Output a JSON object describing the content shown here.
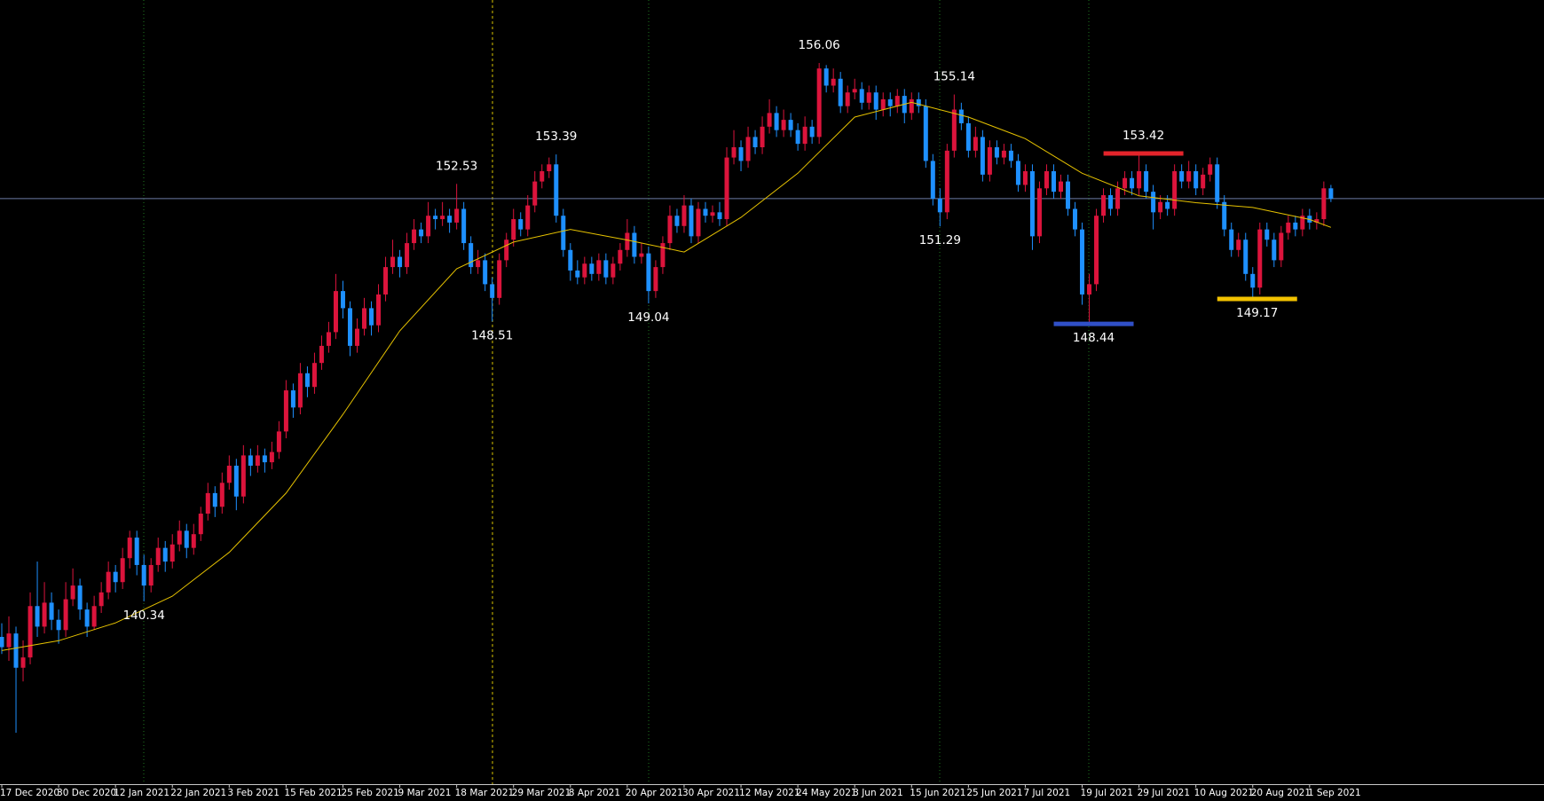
{
  "chart_data": {
    "type": "candlestick",
    "ylim": [
      135,
      157.9
    ],
    "up_color": "#dc143c",
    "down_color": "#1e90ff",
    "price_line": 152.1,
    "price_line_color": "#6b7ba4",
    "categories": [
      "17 Dec 2020",
      null,
      null,
      null,
      null,
      null,
      null,
      null,
      "30 Dec 2020",
      null,
      null,
      null,
      null,
      null,
      null,
      null,
      "12 Jan 2021",
      null,
      null,
      null,
      null,
      null,
      null,
      null,
      "22 Jan 2021",
      null,
      null,
      null,
      null,
      null,
      null,
      null,
      "3 Feb 2021",
      null,
      null,
      null,
      null,
      null,
      null,
      null,
      "15 Feb 2021",
      null,
      null,
      null,
      null,
      null,
      null,
      null,
      "25 Feb 2021",
      null,
      null,
      null,
      null,
      null,
      null,
      null,
      "9 Mar 2021",
      null,
      null,
      null,
      null,
      null,
      null,
      null,
      "18 Mar 2021",
      null,
      null,
      null,
      null,
      null,
      null,
      null,
      "29 Mar 2021",
      null,
      null,
      null,
      null,
      null,
      null,
      null,
      "8 Apr 2021",
      null,
      null,
      null,
      null,
      null,
      null,
      null,
      "20 Apr 2021",
      null,
      null,
      null,
      null,
      null,
      null,
      null,
      "30 Apr 2021",
      null,
      null,
      null,
      null,
      null,
      null,
      null,
      "12 May 2021",
      null,
      null,
      null,
      null,
      null,
      null,
      null,
      "24 May 2021",
      null,
      null,
      null,
      null,
      null,
      null,
      null,
      "3 Jun 2021",
      null,
      null,
      null,
      null,
      null,
      null,
      null,
      "15 Jun 2021",
      null,
      null,
      null,
      null,
      null,
      null,
      null,
      "25 Jun 2021",
      null,
      null,
      null,
      null,
      null,
      null,
      null,
      "7 Jul 2021",
      null,
      null,
      null,
      null,
      null,
      null,
      null,
      "19 Jul 2021",
      null,
      null,
      null,
      null,
      null,
      null,
      null,
      "29 Jul 2021",
      null,
      null,
      null,
      null,
      null,
      null,
      null,
      "10 Aug 2021",
      null,
      null,
      null,
      null,
      null,
      null,
      null,
      "20 Aug 2021",
      null,
      null,
      null,
      null,
      null,
      null,
      null,
      "1 Sep 2021",
      null,
      null,
      null
    ],
    "ohlc": [
      [
        139.3,
        139.7,
        138.8,
        139.0
      ],
      [
        139.0,
        139.9,
        138.6,
        139.4
      ],
      [
        139.4,
        139.6,
        136.5,
        138.4
      ],
      [
        138.4,
        139.2,
        138.0,
        138.7
      ],
      [
        138.7,
        140.6,
        138.5,
        140.2
      ],
      [
        140.2,
        141.5,
        139.3,
        139.6
      ],
      [
        139.6,
        140.9,
        139.4,
        140.3
      ],
      [
        140.3,
        140.6,
        139.5,
        139.8
      ],
      [
        139.8,
        140.1,
        139.1,
        139.5
      ],
      [
        139.5,
        140.9,
        139.3,
        140.4
      ],
      [
        140.4,
        141.3,
        140.2,
        140.8
      ],
      [
        140.8,
        141.0,
        139.8,
        140.1
      ],
      [
        140.1,
        140.3,
        139.3,
        139.6
      ],
      [
        139.6,
        140.5,
        139.5,
        140.2
      ],
      [
        140.2,
        140.9,
        140.0,
        140.6
      ],
      [
        140.6,
        141.5,
        140.4,
        141.2
      ],
      [
        141.2,
        141.4,
        140.6,
        140.9
      ],
      [
        140.9,
        141.9,
        140.7,
        141.6
      ],
      [
        141.6,
        142.4,
        141.3,
        142.2
      ],
      [
        142.2,
        142.4,
        141.1,
        141.4
      ],
      [
        141.4,
        141.7,
        140.34,
        140.8
      ],
      [
        140.8,
        141.6,
        140.6,
        141.4
      ],
      [
        141.4,
        142.2,
        141.2,
        141.9
      ],
      [
        141.9,
        142.1,
        141.2,
        141.5
      ],
      [
        141.5,
        142.3,
        141.3,
        142.0
      ],
      [
        142.0,
        142.7,
        141.8,
        142.4
      ],
      [
        142.4,
        142.6,
        141.6,
        141.9
      ],
      [
        141.9,
        142.6,
        141.7,
        142.3
      ],
      [
        142.3,
        143.1,
        142.1,
        142.9
      ],
      [
        142.9,
        143.8,
        142.7,
        143.5
      ],
      [
        143.5,
        143.7,
        142.8,
        143.1
      ],
      [
        143.1,
        144.1,
        142.9,
        143.8
      ],
      [
        143.8,
        144.6,
        143.6,
        144.3
      ],
      [
        144.3,
        144.5,
        143.0,
        143.4
      ],
      [
        143.4,
        144.9,
        143.2,
        144.6
      ],
      [
        144.6,
        144.8,
        144.0,
        144.3
      ],
      [
        144.3,
        144.9,
        144.1,
        144.6
      ],
      [
        144.6,
        144.8,
        144.1,
        144.4
      ],
      [
        144.4,
        145.0,
        144.2,
        144.7
      ],
      [
        144.7,
        145.6,
        144.5,
        145.3
      ],
      [
        145.3,
        146.8,
        145.1,
        146.5
      ],
      [
        146.5,
        146.7,
        145.7,
        146.0
      ],
      [
        146.0,
        147.3,
        145.8,
        147.0
      ],
      [
        147.0,
        147.2,
        146.3,
        146.6
      ],
      [
        146.6,
        147.6,
        146.4,
        147.3
      ],
      [
        147.3,
        148.1,
        147.1,
        147.8
      ],
      [
        147.8,
        148.5,
        147.6,
        148.2
      ],
      [
        148.2,
        149.9,
        148.0,
        149.4
      ],
      [
        149.4,
        149.7,
        148.6,
        148.9
      ],
      [
        148.9,
        149.1,
        147.5,
        147.8
      ],
      [
        147.8,
        148.6,
        147.6,
        148.3
      ],
      [
        148.3,
        149.2,
        148.1,
        148.9
      ],
      [
        148.9,
        149.1,
        148.1,
        148.4
      ],
      [
        148.4,
        149.6,
        148.2,
        149.3
      ],
      [
        149.3,
        150.4,
        149.1,
        150.1
      ],
      [
        150.1,
        150.9,
        149.9,
        150.4
      ],
      [
        150.4,
        150.6,
        149.8,
        150.1
      ],
      [
        150.1,
        151.1,
        149.9,
        150.8
      ],
      [
        150.8,
        151.5,
        150.6,
        151.2
      ],
      [
        151.2,
        151.4,
        150.8,
        151.0
      ],
      [
        151.0,
        152.0,
        150.8,
        151.6
      ],
      [
        151.6,
        151.8,
        151.2,
        151.5
      ],
      [
        151.5,
        152.0,
        151.3,
        151.6
      ],
      [
        151.6,
        151.8,
        151.1,
        151.4
      ],
      [
        151.4,
        152.53,
        151.2,
        151.8
      ],
      [
        151.8,
        152.0,
        150.6,
        150.8
      ],
      [
        150.8,
        151.0,
        149.9,
        150.1
      ],
      [
        150.1,
        150.6,
        149.9,
        150.3
      ],
      [
        150.3,
        150.5,
        149.4,
        149.6
      ],
      [
        149.6,
        149.8,
        148.51,
        149.2
      ],
      [
        149.2,
        150.5,
        149.0,
        150.3
      ],
      [
        150.3,
        151.1,
        150.1,
        150.9
      ],
      [
        150.9,
        151.8,
        150.7,
        151.5
      ],
      [
        151.5,
        151.7,
        151.0,
        151.2
      ],
      [
        151.2,
        152.2,
        151.0,
        151.9
      ],
      [
        151.9,
        152.9,
        151.7,
        152.6
      ],
      [
        152.6,
        153.1,
        152.4,
        152.9
      ],
      [
        152.9,
        153.3,
        152.7,
        153.1
      ],
      [
        153.1,
        153.39,
        151.4,
        151.6
      ],
      [
        151.6,
        151.8,
        150.4,
        150.6
      ],
      [
        150.6,
        150.8,
        149.7,
        150.0
      ],
      [
        150.0,
        150.3,
        149.6,
        149.8
      ],
      [
        149.8,
        150.4,
        149.6,
        150.2
      ],
      [
        150.2,
        150.4,
        149.7,
        149.9
      ],
      [
        149.9,
        150.5,
        149.7,
        150.3
      ],
      [
        150.3,
        150.5,
        149.6,
        149.8
      ],
      [
        149.8,
        150.4,
        149.6,
        150.2
      ],
      [
        150.2,
        150.8,
        150.0,
        150.6
      ],
      [
        150.6,
        151.5,
        150.4,
        151.1
      ],
      [
        151.1,
        151.3,
        150.2,
        150.4
      ],
      [
        150.4,
        150.8,
        150.2,
        150.5
      ],
      [
        150.5,
        150.7,
        149.04,
        149.4
      ],
      [
        149.4,
        150.3,
        149.2,
        150.1
      ],
      [
        150.1,
        151.0,
        149.9,
        150.8
      ],
      [
        150.8,
        151.9,
        150.6,
        151.6
      ],
      [
        151.6,
        151.8,
        151.1,
        151.3
      ],
      [
        151.3,
        152.2,
        151.1,
        151.9
      ],
      [
        151.9,
        152.1,
        150.8,
        151.0
      ],
      [
        151.0,
        152.0,
        150.8,
        151.8
      ],
      [
        151.8,
        152.0,
        151.4,
        151.6
      ],
      [
        151.6,
        151.9,
        151.4,
        151.7
      ],
      [
        151.7,
        152.0,
        151.3,
        151.5
      ],
      [
        151.5,
        153.6,
        151.3,
        153.3
      ],
      [
        153.3,
        154.1,
        153.1,
        153.6
      ],
      [
        153.6,
        153.8,
        152.9,
        153.2
      ],
      [
        153.2,
        154.2,
        153.0,
        153.9
      ],
      [
        153.9,
        154.1,
        153.4,
        153.6
      ],
      [
        153.6,
        154.5,
        153.4,
        154.2
      ],
      [
        154.2,
        155.0,
        154.0,
        154.6
      ],
      [
        154.6,
        154.8,
        153.9,
        154.1
      ],
      [
        154.1,
        154.7,
        153.9,
        154.4
      ],
      [
        154.4,
        154.6,
        153.9,
        154.1
      ],
      [
        154.1,
        154.3,
        153.5,
        153.7
      ],
      [
        153.7,
        154.5,
        153.5,
        154.2
      ],
      [
        154.2,
        154.4,
        153.7,
        153.9
      ],
      [
        153.9,
        156.06,
        153.7,
        155.9
      ],
      [
        155.9,
        156.0,
        155.2,
        155.4
      ],
      [
        155.4,
        155.9,
        155.2,
        155.6
      ],
      [
        155.6,
        155.8,
        154.6,
        154.8
      ],
      [
        154.8,
        155.4,
        154.6,
        155.2
      ],
      [
        155.2,
        155.6,
        155.0,
        155.3
      ],
      [
        155.3,
        155.5,
        154.7,
        154.9
      ],
      [
        154.9,
        155.4,
        154.7,
        155.2
      ],
      [
        155.2,
        155.4,
        154.4,
        154.7
      ],
      [
        154.7,
        155.2,
        154.5,
        155.0
      ],
      [
        155.0,
        155.2,
        154.5,
        154.8
      ],
      [
        154.8,
        155.3,
        154.6,
        155.1
      ],
      [
        155.1,
        155.3,
        154.3,
        154.6
      ],
      [
        154.6,
        155.2,
        154.4,
        155.0
      ],
      [
        155.0,
        155.2,
        154.6,
        154.8
      ],
      [
        154.8,
        155.0,
        153.0,
        153.2
      ],
      [
        153.2,
        153.4,
        151.9,
        152.1
      ],
      [
        152.1,
        152.4,
        151.29,
        151.7
      ],
      [
        151.7,
        153.7,
        151.5,
        153.5
      ],
      [
        153.5,
        155.14,
        153.3,
        154.7
      ],
      [
        154.7,
        154.9,
        154.1,
        154.3
      ],
      [
        154.3,
        154.5,
        153.3,
        153.5
      ],
      [
        153.5,
        154.2,
        153.3,
        153.9
      ],
      [
        153.9,
        154.1,
        152.6,
        152.8
      ],
      [
        152.8,
        153.8,
        152.6,
        153.6
      ],
      [
        153.6,
        153.8,
        153.1,
        153.3
      ],
      [
        153.3,
        153.7,
        153.1,
        153.5
      ],
      [
        153.5,
        153.7,
        153.0,
        153.2
      ],
      [
        153.2,
        153.4,
        152.3,
        152.5
      ],
      [
        152.5,
        153.1,
        152.3,
        152.9
      ],
      [
        152.9,
        153.1,
        150.6,
        151.0
      ],
      [
        151.0,
        152.6,
        150.8,
        152.4
      ],
      [
        152.4,
        153.1,
        152.2,
        152.9
      ],
      [
        152.9,
        153.1,
        152.1,
        152.3
      ],
      [
        152.3,
        152.8,
        152.1,
        152.6
      ],
      [
        152.6,
        152.8,
        151.6,
        151.8
      ],
      [
        151.8,
        152.0,
        151.0,
        151.2
      ],
      [
        151.2,
        151.4,
        149.0,
        149.3
      ],
      [
        149.3,
        149.9,
        148.44,
        149.6
      ],
      [
        149.6,
        151.8,
        149.4,
        151.6
      ],
      [
        151.6,
        152.4,
        151.4,
        152.2
      ],
      [
        152.2,
        152.4,
        151.6,
        151.8
      ],
      [
        151.8,
        152.6,
        151.6,
        152.4
      ],
      [
        152.4,
        152.9,
        152.2,
        152.7
      ],
      [
        152.7,
        152.9,
        152.2,
        152.4
      ],
      [
        152.4,
        153.42,
        152.2,
        152.9
      ],
      [
        152.9,
        153.1,
        152.1,
        152.3
      ],
      [
        152.3,
        152.5,
        151.2,
        151.7
      ],
      [
        151.7,
        152.2,
        151.5,
        152.0
      ],
      [
        152.0,
        152.2,
        151.6,
        151.8
      ],
      [
        151.8,
        153.1,
        151.6,
        152.9
      ],
      [
        152.9,
        153.1,
        152.4,
        152.6
      ],
      [
        152.6,
        153.2,
        152.4,
        152.9
      ],
      [
        152.9,
        153.1,
        152.2,
        152.4
      ],
      [
        152.4,
        153.0,
        152.2,
        152.8
      ],
      [
        152.8,
        153.3,
        152.6,
        153.1
      ],
      [
        153.1,
        153.3,
        151.8,
        152.0
      ],
      [
        152.0,
        152.2,
        151.0,
        151.2
      ],
      [
        151.2,
        151.4,
        150.4,
        150.6
      ],
      [
        150.6,
        151.1,
        150.4,
        150.9
      ],
      [
        150.9,
        151.1,
        149.7,
        149.9
      ],
      [
        149.9,
        150.1,
        149.17,
        149.5
      ],
      [
        149.5,
        151.4,
        149.3,
        151.2
      ],
      [
        151.2,
        151.4,
        150.7,
        150.9
      ],
      [
        150.9,
        151.1,
        150.1,
        150.3
      ],
      [
        150.3,
        151.3,
        150.1,
        151.1
      ],
      [
        151.1,
        151.6,
        150.9,
        151.4
      ],
      [
        151.4,
        151.6,
        151.0,
        151.2
      ],
      [
        151.2,
        151.8,
        151.0,
        151.6
      ],
      [
        151.6,
        151.8,
        151.2,
        151.4
      ],
      [
        151.4,
        151.7,
        151.2,
        151.5
      ],
      [
        151.5,
        152.6,
        151.3,
        152.4
      ],
      [
        152.4,
        152.5,
        152.0,
        152.1
      ]
    ],
    "lines": [
      {
        "color": "#e6c200",
        "x": [
          0,
          8,
          16,
          24,
          32,
          40,
          48,
          56,
          64,
          72,
          80,
          88,
          96,
          104,
          112,
          120,
          128,
          136,
          144,
          152,
          160,
          168,
          176,
          184,
          187
        ],
        "values": [
          138.9,
          139.19,
          139.71,
          140.49,
          141.77,
          143.5,
          145.8,
          148.24,
          150.05,
          150.83,
          151.2,
          150.89,
          150.54,
          151.55,
          152.84,
          154.48,
          154.91,
          154.48,
          153.85,
          152.84,
          152.18,
          151.98,
          151.84,
          151.49,
          151.26
        ]
      }
    ],
    "annotations": [
      {
        "value": 140.34
      },
      {
        "value": 152.53
      },
      {
        "value": 148.51
      },
      {
        "value": 153.39
      },
      {
        "value": 149.04
      },
      {
        "value": 156.06
      },
      {
        "value": 155.14
      },
      {
        "value": 151.29
      },
      {
        "value": 153.42,
        "color": "#e3242b"
      },
      {
        "value": 148.44,
        "color": "#3050c8"
      },
      {
        "value": 149.17,
        "color": "#f2c200"
      }
    ]
  }
}
